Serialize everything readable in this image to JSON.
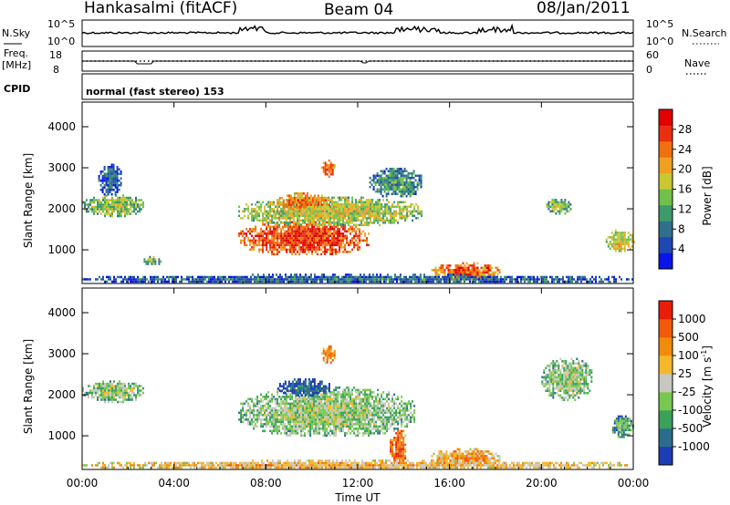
{
  "header": {
    "station": "Hankasalmi (fitACF)",
    "beam": "Beam 04",
    "date": "08/Jan/2011"
  },
  "top_panels": {
    "nsky": {
      "label": "N.Sky",
      "tick_top": "10^5",
      "tick_bottom": "10^0"
    },
    "nsearch": {
      "label": "N.Search",
      "tick_top": "10^5",
      "tick_bottom": "10^0"
    },
    "freq": {
      "label_line1": "Freq.",
      "label_line2": "[MHz]",
      "tick_top": "18",
      "tick_bottom": "8"
    },
    "nave": {
      "label": "Nave",
      "tick_top": "60",
      "tick_bottom": "0"
    },
    "cpid": {
      "label": "CPID",
      "value": "normal (fast stereo) 153"
    }
  },
  "chart_data": [
    {
      "type": "heatmap",
      "name": "power",
      "ylabel": "Slant Range [km]",
      "xlabel": "",
      "x_ticks": [
        "00:00",
        "04:00",
        "08:00",
        "12:00",
        "16:00",
        "20:00",
        "00:00"
      ],
      "y_ticks": [
        "1000",
        "2000",
        "3000",
        "4000"
      ],
      "xlim": [
        0,
        24
      ],
      "ylim": [
        180,
        4600
      ],
      "colorbar": {
        "label": "Power [dB]",
        "ticks": [
          "4",
          "8",
          "12",
          "16",
          "20",
          "24",
          "28"
        ],
        "colors": [
          "#0a14e6",
          "#1e46b4",
          "#2f6f8c",
          "#3d9a6a",
          "#6fc14a",
          "#c8c832",
          "#f0a020",
          "#f07010",
          "#e83010",
          "#e00000"
        ]
      },
      "regions": [
        {
          "t0": 0.0,
          "t1": 2.7,
          "r0": 1850,
          "r1": 2350,
          "level": 0.5
        },
        {
          "t0": 0.7,
          "t1": 1.7,
          "r0": 2350,
          "r1": 3100,
          "level": 0.25
        },
        {
          "t0": 2.6,
          "t1": 3.4,
          "r0": 650,
          "r1": 850,
          "level": 0.45
        },
        {
          "t0": 6.8,
          "t1": 12.5,
          "r0": 900,
          "r1": 1700,
          "level": 0.85
        },
        {
          "t0": 6.8,
          "t1": 14.8,
          "r0": 1600,
          "r1": 2300,
          "level": 0.55
        },
        {
          "t0": 8.5,
          "t1": 10.8,
          "r0": 2000,
          "r1": 2400,
          "level": 0.75
        },
        {
          "t0": 12.5,
          "t1": 14.8,
          "r0": 2300,
          "r1": 3000,
          "level": 0.35
        },
        {
          "t0": 10.4,
          "t1": 11.0,
          "r0": 2800,
          "r1": 3200,
          "level": 0.8
        },
        {
          "t0": 15.2,
          "t1": 18.2,
          "r0": 280,
          "r1": 700,
          "level": 0.8
        },
        {
          "t0": 20.2,
          "t1": 21.3,
          "r0": 1900,
          "r1": 2300,
          "level": 0.45
        },
        {
          "t0": 22.8,
          "t1": 24.0,
          "r0": 1000,
          "r1": 1500,
          "level": 0.6
        },
        {
          "t0": 0.0,
          "t1": 24.0,
          "r0": 200,
          "r1": 420,
          "level": 0.25
        }
      ]
    },
    {
      "type": "heatmap",
      "name": "velocity",
      "ylabel": "Slant Range [km]",
      "xlabel": "Time UT",
      "x_ticks": [
        "00:00",
        "04:00",
        "08:00",
        "12:00",
        "16:00",
        "20:00",
        "00:00"
      ],
      "y_ticks": [
        "1000",
        "2000",
        "3000",
        "4000"
      ],
      "xlim": [
        0,
        24
      ],
      "ylim": [
        180,
        4600
      ],
      "colorbar": {
        "label": "Velocity [m s^-1]",
        "ticks": [
          "1000",
          "500",
          "100",
          "25",
          "-25",
          "-100",
          "-500",
          "-1000"
        ],
        "colors": [
          "#1e3cb4",
          "#2a6e8c",
          "#3aa05a",
          "#78c850",
          "#c8c8c0",
          "#f5b82a",
          "#f08c0a",
          "#f05a0a",
          "#e81e0a"
        ]
      },
      "regions": [
        {
          "t0": 0.0,
          "t1": 2.7,
          "r0": 1850,
          "r1": 2350,
          "level": 0.45
        },
        {
          "t0": 6.8,
          "t1": 14.5,
          "r0": 1000,
          "r1": 2200,
          "level": 0.45
        },
        {
          "t0": 8.5,
          "t1": 10.8,
          "r0": 2000,
          "r1": 2400,
          "level": 0.15
        },
        {
          "t0": 13.4,
          "t1": 14.1,
          "r0": 300,
          "r1": 1200,
          "level": 0.85
        },
        {
          "t0": 15.2,
          "t1": 18.2,
          "r0": 300,
          "r1": 700,
          "level": 0.7
        },
        {
          "t0": 10.4,
          "t1": 11.0,
          "r0": 2800,
          "r1": 3200,
          "level": 0.8
        },
        {
          "t0": 23.0,
          "t1": 24.0,
          "r0": 1000,
          "r1": 1500,
          "level": 0.3
        },
        {
          "t0": 20.0,
          "t1": 22.2,
          "r0": 1900,
          "r1": 2900,
          "level": 0.45
        },
        {
          "t0": 0.0,
          "t1": 24.0,
          "r0": 200,
          "r1": 420,
          "level": 0.65
        }
      ]
    }
  ]
}
